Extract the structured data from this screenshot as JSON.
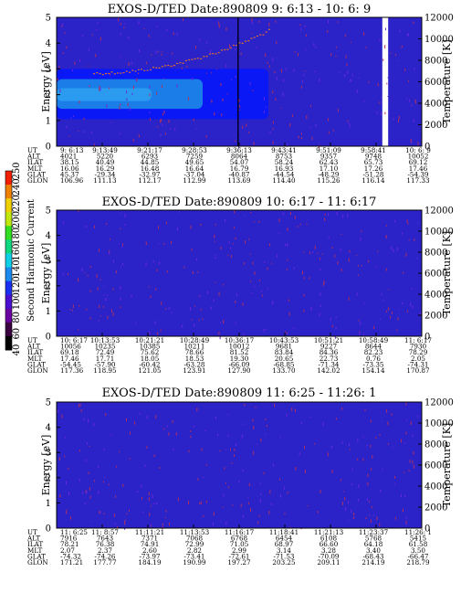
{
  "chart_data": [
    {
      "type": "heatmap",
      "title": "EXOS-D/TED   Date:890809  9: 6:13 - 10: 6: 9",
      "ylabel": "Energy [eV]",
      "y2label": "Temperature [K]",
      "ylim": [
        0,
        5
      ],
      "y2lim": [
        0,
        12000
      ],
      "yticks": [
        "0",
        "1",
        "2",
        "3",
        "4",
        "5"
      ],
      "y2ticks": [
        "0",
        "2000",
        "4000",
        "6000",
        "8000",
        "10000",
        "12000"
      ],
      "background_color": "#2b22c8",
      "features": {
        "band_outer": {
          "x_end": 0.58,
          "y": [
            1.05,
            3.0
          ],
          "color": "#0a18f6"
        },
        "band_inner": {
          "x_end": 0.4,
          "y": [
            1.45,
            2.6
          ],
          "color": "#1b7de8"
        },
        "band_core": {
          "x_end": 0.26,
          "y": [
            1.75,
            2.25
          ],
          "color": "#2a9bef"
        },
        "bright_gap": {
          "x": [
            0.892,
            0.908
          ],
          "color": "#ffffff"
        },
        "speckle_trace": {
          "x": [
            0.1,
            0.58
          ],
          "y": [
            2.85,
            4.5
          ]
        }
      },
      "table": {
        "row_labels": [
          "UT",
          "ALT",
          "ILAT",
          "MLT",
          "GLAT",
          "GLON"
        ],
        "columns": [
          [
            "9: 6:13",
            "4021",
            "38.15",
            "16.06",
            "45.37",
            "106.96"
          ],
          [
            "9:13:49",
            "5220",
            "40.49",
            "16.29",
            "-29.34",
            "111.13"
          ],
          [
            "9:21:17",
            "6293",
            "44.85",
            "16.48",
            "-32.97",
            "112.17"
          ],
          [
            "9:28:53",
            "7259",
            "49.65",
            "16.64",
            "-37.04",
            "112.99"
          ],
          [
            "9:36:13",
            "8064",
            "54.07",
            "16.79",
            "-40.87",
            "113.69"
          ],
          [
            "9:43:41",
            "8753",
            "58.24",
            "16.93",
            "-44.54",
            "114.40"
          ],
          [
            "9:51:09",
            "9357",
            "62.43",
            "17.10",
            "-48.29",
            "115.26"
          ],
          [
            "9:58:41",
            "9748",
            "65.73",
            "17.26",
            "-51.28",
            "116.14"
          ],
          [
            "10: 6: 9",
            "10052",
            "69.12",
            "17.46",
            "-54.39",
            "117.33"
          ]
        ]
      }
    },
    {
      "type": "heatmap",
      "title": "EXOS-D/TED   Date:890809  10: 6:17 - 11: 6:17",
      "ylabel": "Energy [eV]",
      "y2label": "Temperature [K]",
      "ylim": [
        0,
        5
      ],
      "y2lim": [
        0,
        12000
      ],
      "yticks": [
        "0",
        "1",
        "2",
        "3",
        "4",
        "5"
      ],
      "y2ticks": [
        "0",
        "2000",
        "4000",
        "6000",
        "8000",
        "10000",
        "12000"
      ],
      "background_color": "#2b22c8",
      "table": {
        "row_labels": [
          "UT",
          "ALT",
          "ILAT",
          "MLT",
          "GLAT",
          "GLON"
        ],
        "columns": [
          [
            "10: 6:17",
            "10056",
            "69.18",
            "17.46",
            "-54.45",
            "117.36"
          ],
          [
            "10:13:53",
            "10235",
            "72.49",
            "17.71",
            "-57.90",
            "118.95"
          ],
          [
            "10:21:21",
            "10385",
            "75.62",
            "18.05",
            "-60.42",
            "121.05"
          ],
          [
            "10:28:49",
            "10211",
            "78.66",
            "18.53",
            "-63.28",
            "123.91"
          ],
          [
            "10:36:17",
            "10012",
            "81.52",
            "19.30",
            "-66.09",
            "127.90"
          ],
          [
            "10:43:53",
            "9681",
            "83.84",
            "20.65",
            "-68.85",
            "133.70"
          ],
          [
            "10:51:21",
            "9227",
            "84.36",
            "22.73",
            "-71.34",
            "142.02"
          ],
          [
            "10:58:49",
            "8644",
            "82.23",
            "0.76",
            "-73.35",
            "154.14"
          ],
          [
            "11: 6:17",
            "7930",
            "78.29",
            "2.05",
            "-74.31",
            "170.87"
          ]
        ]
      }
    },
    {
      "type": "heatmap",
      "title": "EXOS-D/TED   Date:890809  11: 6:25 - 11:26: 1",
      "ylabel": "Energy [eV]",
      "y2label": "Temperature [K]",
      "ylim": [
        0,
        5
      ],
      "y2lim": [
        0,
        12000
      ],
      "yticks": [
        "0",
        "1",
        "2",
        "3",
        "4",
        "5"
      ],
      "y2ticks": [
        "0",
        "2000",
        "4000",
        "6000",
        "8000",
        "10000",
        "12000"
      ],
      "background_color": "#2b22c8",
      "table": {
        "row_labels": [
          "UT",
          "ALT",
          "ILAT",
          "MLT",
          "GLAT",
          "GLON"
        ],
        "columns": [
          [
            "11: 6:25",
            "7916",
            "78.21",
            "2.07",
            "-74.32",
            "171.21"
          ],
          [
            "11: 8:57",
            "7643",
            "76.38",
            "2.37",
            "-74.26",
            "177.77"
          ],
          [
            "11:11:21",
            "7371",
            "74.91",
            "2.60",
            "-73.97",
            "184.19"
          ],
          [
            "11:13:53",
            "7068",
            "72.99",
            "2.82",
            "-73.41",
            "190.99"
          ],
          [
            "11:16:17",
            "6768",
            "71.05",
            "2.99",
            "-72.61",
            "197.27"
          ],
          [
            "11:18:41",
            "6454",
            "68.97",
            "3.14",
            "-71.53",
            "203.25"
          ],
          [
            "11:21:13",
            "6108",
            "66.60",
            "3.28",
            "-70.09",
            "209.11"
          ],
          [
            "11:23:37",
            "5768",
            "64.18",
            "3.40",
            "-68.43",
            "214.19"
          ],
          [
            "11:26: 1",
            "5415",
            "61.58",
            "3.50",
            "-66.47",
            "218.79"
          ]
        ]
      }
    }
  ],
  "colorbar": {
    "label": "Second Harmonic Current",
    "ticks": [
      "40",
      "60",
      "80",
      "100",
      "120",
      "140",
      "160",
      "180",
      "200",
      "220",
      "240",
      "250"
    ],
    "colors": [
      "#000000",
      "#3a0040",
      "#6a00a0",
      "#4a10d0",
      "#1a30f0",
      "#1a8af0",
      "#10d0e8",
      "#10d880",
      "#30e020",
      "#c0e810",
      "#f0d000",
      "#f08000",
      "#f02000"
    ]
  }
}
